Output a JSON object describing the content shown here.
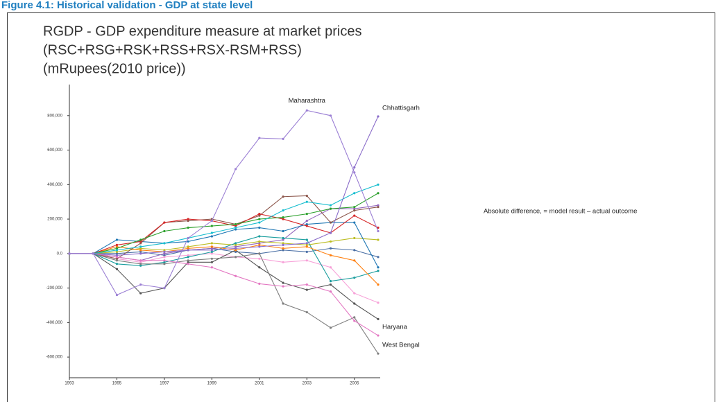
{
  "header": "Figure 4.1: Historical validation - GDP at state level",
  "chart_data": {
    "type": "line",
    "title": [
      "RGDP - GDP expenditure measure at market prices",
      "(RSC+RSG+RSK+RSS+RSX-RSM+RSS)",
      "(mRupees(2010 price))"
    ],
    "annotation": "Absolute difference, = model result – actual outcome",
    "x": [
      1993,
      1994,
      1995,
      1996,
      1997,
      1998,
      1999,
      2000,
      2001,
      2002,
      2003,
      2004,
      2005,
      2006
    ],
    "xlim": [
      1993,
      2006
    ],
    "xticks": [
      1993,
      1995,
      1997,
      1999,
      2001,
      2003,
      2005
    ],
    "ylim": [
      -720000,
      980000
    ],
    "yticks": [
      {
        "value": -600000,
        "label": "-600,000"
      },
      {
        "value": -400000,
        "label": "-400,000"
      },
      {
        "value": -200000,
        "label": "-200,000"
      },
      {
        "value": 0,
        "label": "0.0"
      },
      {
        "value": 200000,
        "label": "200,000"
      },
      {
        "value": 400000,
        "label": "400,000"
      },
      {
        "value": 600000,
        "label": "600,000"
      },
      {
        "value": 800000,
        "label": "800,000"
      }
    ],
    "series": [
      {
        "name": "Maharashtra",
        "color": "#9b7fd4",
        "values": [
          0,
          0,
          -240000,
          -180000,
          -200000,
          90000,
          190000,
          490000,
          670000,
          665000,
          830000,
          800000,
          470000,
          130000
        ]
      },
      {
        "name": "Chhattisgarh",
        "color": "#8a6cc9",
        "values": [
          0,
          0,
          -10000,
          0,
          10000,
          20000,
          20000,
          30000,
          40000,
          50000,
          60000,
          120000,
          500000,
          795000
        ]
      },
      {
        "name": "Haryana",
        "color": "#e377c2",
        "values": [
          0,
          0,
          -20000,
          -40000,
          -40000,
          -60000,
          -80000,
          -130000,
          -175000,
          -190000,
          -180000,
          -220000,
          -390000,
          -475000
        ]
      },
      {
        "name": "West Bengal",
        "color": "#7f7f7f",
        "values": [
          0,
          0,
          -40000,
          -60000,
          -60000,
          -40000,
          -30000,
          -20000,
          0,
          -290000,
          -340000,
          -430000,
          -370000,
          -580000
        ]
      },
      {
        "color": "#17becf",
        "values": [
          0,
          0,
          20000,
          40000,
          60000,
          90000,
          120000,
          150000,
          180000,
          250000,
          300000,
          280000,
          350000,
          400000
        ]
      },
      {
        "color": "#2ca02c",
        "values": [
          0,
          0,
          30000,
          80000,
          130000,
          150000,
          160000,
          170000,
          200000,
          210000,
          230000,
          260000,
          270000,
          350000
        ]
      },
      {
        "color": "#d62728",
        "values": [
          0,
          0,
          50000,
          70000,
          180000,
          200000,
          190000,
          160000,
          230000,
          200000,
          160000,
          120000,
          220000,
          150000
        ]
      },
      {
        "color": "#8c564b",
        "values": [
          0,
          0,
          -30000,
          60000,
          180000,
          190000,
          200000,
          170000,
          220000,
          330000,
          335000,
          180000,
          250000,
          270000
        ]
      },
      {
        "color": "#1f77b4",
        "values": [
          0,
          0,
          80000,
          70000,
          60000,
          70000,
          100000,
          140000,
          150000,
          130000,
          170000,
          180000,
          180000,
          -80000
        ]
      },
      {
        "color": "#ff7f0e",
        "values": [
          0,
          0,
          40000,
          20000,
          10000,
          30000,
          40000,
          20000,
          50000,
          30000,
          40000,
          -10000,
          -40000,
          -180000
        ]
      },
      {
        "color": "#1a9e9e",
        "values": [
          0,
          0,
          -60000,
          -70000,
          -50000,
          -20000,
          10000,
          60000,
          100000,
          90000,
          80000,
          -160000,
          -140000,
          -100000
        ]
      },
      {
        "color": "#555555",
        "values": [
          0,
          0,
          -90000,
          -230000,
          -200000,
          -50000,
          -50000,
          20000,
          -80000,
          -170000,
          -210000,
          -180000,
          -290000,
          -380000
        ]
      },
      {
        "color": "#bcbd22",
        "values": [
          0,
          0,
          10000,
          30000,
          20000,
          40000,
          60000,
          50000,
          70000,
          60000,
          50000,
          70000,
          90000,
          80000
        ]
      },
      {
        "color": "#9467bd",
        "values": [
          0,
          0,
          -20000,
          -40000,
          0,
          20000,
          30000,
          40000,
          60000,
          80000,
          190000,
          260000,
          260000,
          280000
        ]
      },
      {
        "color": "#f7a1d8",
        "values": [
          0,
          0,
          -30000,
          -50000,
          -20000,
          -10000,
          0,
          -20000,
          -30000,
          -50000,
          -40000,
          -80000,
          -230000,
          -285000
        ]
      },
      {
        "color": "#4a6fa5",
        "values": [
          0,
          0,
          0,
          10000,
          -10000,
          20000,
          30000,
          10000,
          0,
          20000,
          10000,
          30000,
          20000,
          -20000
        ]
      }
    ]
  }
}
